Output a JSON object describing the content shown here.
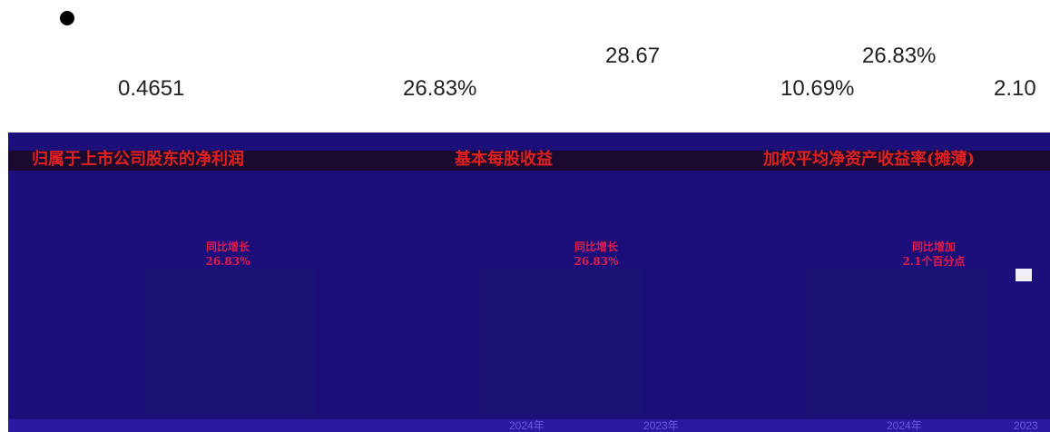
{
  "stats": {
    "s1": "28.67",
    "s2": "26.83%",
    "s3": "0.4651",
    "s4": "26.83%",
    "s5": "10.69%",
    "s6": "2.10"
  },
  "charts": [
    {
      "title": "归属于上市公司股东的净利润",
      "tag_line1": "同比增长",
      "tag_line2": "26.83%"
    },
    {
      "title": "基本每股收益",
      "tag_line1": "同比增长",
      "tag_line2": "26.83%"
    },
    {
      "title": "加权平均净资产收益率(摊薄)",
      "tag_line1": "同比增加",
      "tag_line2": "2.1个百分点"
    }
  ],
  "axis": {
    "a1": "2024年",
    "a2": "2023年",
    "a3": "2024年",
    "a4": "2023"
  },
  "colors": {
    "banner": "#1d0f7a",
    "title_red": "#e02020"
  }
}
